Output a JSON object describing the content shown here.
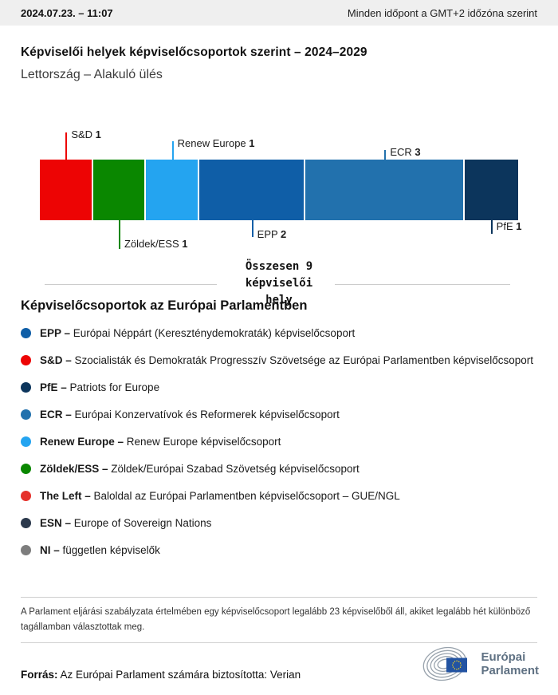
{
  "header": {
    "datetime": "2024.07.23. – 11:07",
    "timezone_note": "Minden időpont a GMT+2 időzóna szerint"
  },
  "title": "Képviselői helyek képviselőcsoportok szerint – 2024–2029",
  "subtitle": "Lettország – Alakuló ülés",
  "chart_data": {
    "type": "bar",
    "orientation": "horizontal-stacked",
    "title": "Képviselői helyek képviselőcsoportok szerint – 2024–2029",
    "subtitle": "Lettország – Alakuló ülés",
    "total_seats": 9,
    "total_label": "Összesen 9 képviselői hely",
    "categories": [
      "S&D",
      "Zöldek/ESS",
      "Renew Europe",
      "EPP",
      "ECR",
      "PfE"
    ],
    "values": [
      1,
      1,
      1,
      2,
      3,
      1
    ],
    "segments": [
      {
        "id": "sd",
        "name": "S&D",
        "seats": 1,
        "color": "#ed0404",
        "label_position": "above"
      },
      {
        "id": "greens",
        "name": "Zöldek/ESS",
        "seats": 1,
        "color": "#0a8700",
        "label_position": "below"
      },
      {
        "id": "renew",
        "name": "Renew Europe",
        "seats": 1,
        "color": "#24a4f0",
        "label_position": "above"
      },
      {
        "id": "epp",
        "name": "EPP",
        "seats": 2,
        "color": "#0f5ea7",
        "label_position": "below"
      },
      {
        "id": "ecr",
        "name": "ECR",
        "seats": 3,
        "color": "#2271ad",
        "label_position": "above"
      },
      {
        "id": "pfe",
        "name": "PfE",
        "seats": 1,
        "color": "#0c355c",
        "label_position": "below"
      }
    ]
  },
  "legend": {
    "heading": "Képviselőcsoportok az Európai Parlamentben",
    "items": [
      {
        "id": "epp",
        "abbr": "EPP –",
        "desc": "Európai Néppárt (Kereszténydemokraták) képviselőcsoport",
        "color": "#0f5ea7"
      },
      {
        "id": "sd",
        "abbr": "S&D –",
        "desc": "Szocialisták és Demokraták Progresszív Szövetsége az Európai Parlamentben képviselőcsoport",
        "color": "#ed0404"
      },
      {
        "id": "pfe",
        "abbr": "PfE –",
        "desc": "Patriots for Europe",
        "color": "#0c355c"
      },
      {
        "id": "ecr",
        "abbr": "ECR –",
        "desc": "Európai Konzervatívok és Reformerek képviselőcsoport",
        "color": "#2271ad"
      },
      {
        "id": "renew",
        "abbr": "Renew Europe –",
        "desc": "Renew Europe képviselőcsoport",
        "color": "#24a4f0"
      },
      {
        "id": "greens",
        "abbr": "Zöldek/ESS –",
        "desc": "Zöldek/Európai Szabad Szövetség képviselőcsoport",
        "color": "#0a8700"
      },
      {
        "id": "left",
        "abbr": "The Left –",
        "desc": "Baloldal az Európai Parlamentben képviselőcsoport – GUE/NGL",
        "color": "#e5312b"
      },
      {
        "id": "esn",
        "abbr": "ESN –",
        "desc": "Europe of Sovereign Nations",
        "color": "#2b394c"
      },
      {
        "id": "ni",
        "abbr": "NI –",
        "desc": "független képviselők",
        "color": "#7d7d7d"
      }
    ]
  },
  "footnote": "A Parlament eljárási szabályzata értelmében egy képviselőcsoport legalább 23 képviselőből áll, akiket legalább hét különböző tagállamban választottak meg.",
  "source": {
    "label": "Forrás:",
    "text": " Az Európai Parlament számára biztosította: Verian"
  },
  "logo": {
    "line1": "Európai",
    "line2": "Parlament",
    "flag_color": "#2253a2",
    "star_color": "#ffd617",
    "arc_color": "#98a2ac"
  }
}
